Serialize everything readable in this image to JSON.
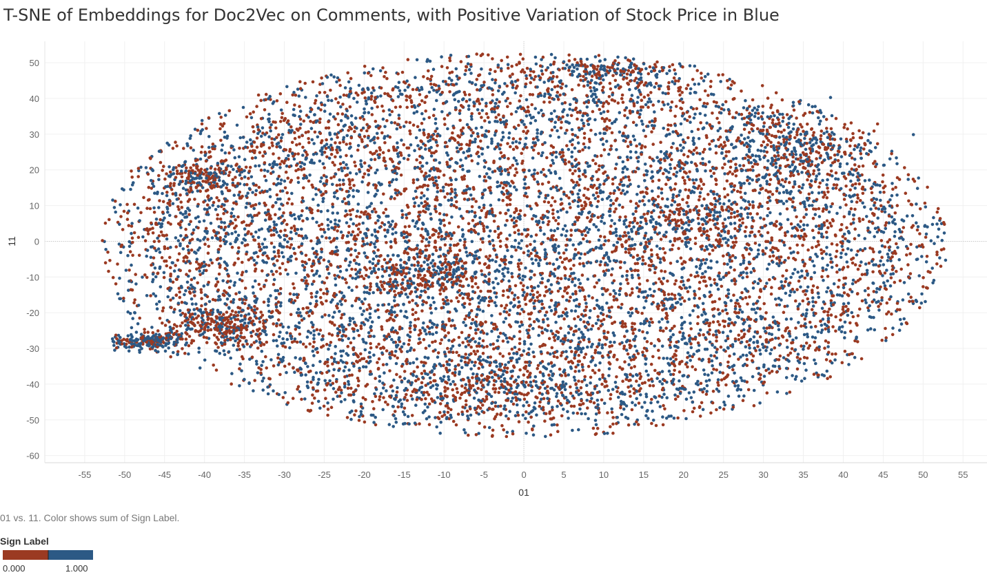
{
  "title": "T-SNE of Embeddings for Doc2Vec on Comments, with Positive Variation of Stock Price in Blue",
  "caption": "01 vs. 11.  Color shows sum of Sign Label.",
  "legend": {
    "title": "Sign Label",
    "min_label": "0.000",
    "max_label": "1.000",
    "low_color": "#9b3a22",
    "high_color": "#2c5985"
  },
  "chart_data": {
    "type": "scatter",
    "xlabel": "01",
    "ylabel": "11",
    "xlim": [
      -60,
      58
    ],
    "ylim": [
      -62,
      56
    ],
    "x_ticks": [
      -55,
      -50,
      -45,
      -40,
      -35,
      -30,
      -25,
      -20,
      -15,
      -10,
      -5,
      0,
      5,
      10,
      15,
      20,
      25,
      30,
      35,
      40,
      45,
      50,
      55
    ],
    "y_ticks": [
      50,
      40,
      30,
      20,
      10,
      0,
      -10,
      -20,
      -30,
      -40,
      -50,
      -60
    ],
    "grid": true,
    "zero_lines": true,
    "legend_position": "bottom-left",
    "color_encoding": "Sign Label (0 = red, 1 = blue)",
    "series": [
      {
        "name": "0.000",
        "color": "#9b3a22"
      },
      {
        "name": "1.000",
        "color": "#2c5985"
      }
    ],
    "points_approx_note": "dense elliptical cloud, x from about -53 to 54, y from about -55 to 54",
    "clusters": [
      {
        "x": -47,
        "y": -28,
        "label_mix": "mostly blue"
      },
      {
        "x": -38,
        "y": -24,
        "label_mix": "mostly red"
      },
      {
        "x": -40,
        "y": 18,
        "label_mix": "mostly red"
      },
      {
        "x": 10,
        "y": 48,
        "label_mix": "mixed"
      },
      {
        "x": -12,
        "y": -9,
        "label_mix": "mixed"
      },
      {
        "x": 35,
        "y": 25,
        "label_mix": "mostly red"
      }
    ]
  }
}
